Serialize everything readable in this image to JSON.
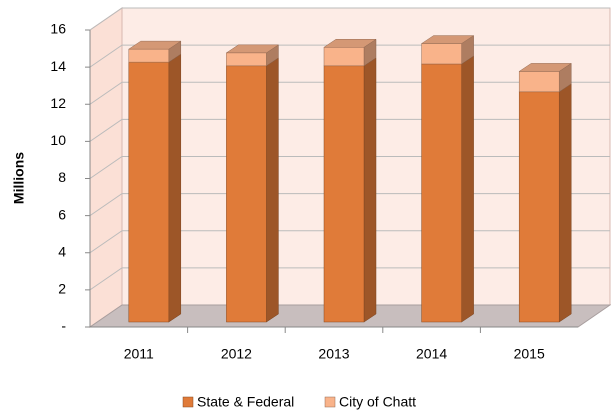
{
  "chart_data": {
    "type": "bar3d_stacked",
    "y_label": "Millions",
    "categories": [
      "2011",
      "2012",
      "2013",
      "2014",
      "2015"
    ],
    "series": [
      {
        "name": "State & Federal",
        "color": "#e07b39",
        "values": [
          14.0,
          13.8,
          13.8,
          13.9,
          12.4
        ]
      },
      {
        "name": "City of Chatt",
        "color": "#f9b38a",
        "values": [
          0.7,
          0.7,
          1.0,
          1.1,
          1.1
        ]
      }
    ],
    "ylim": [
      0,
      16
    ],
    "yticks": [
      {
        "value": 0,
        "label": "-"
      },
      2,
      4,
      6,
      8,
      10,
      12,
      14,
      16
    ],
    "grid": true,
    "legend": "bottom"
  }
}
